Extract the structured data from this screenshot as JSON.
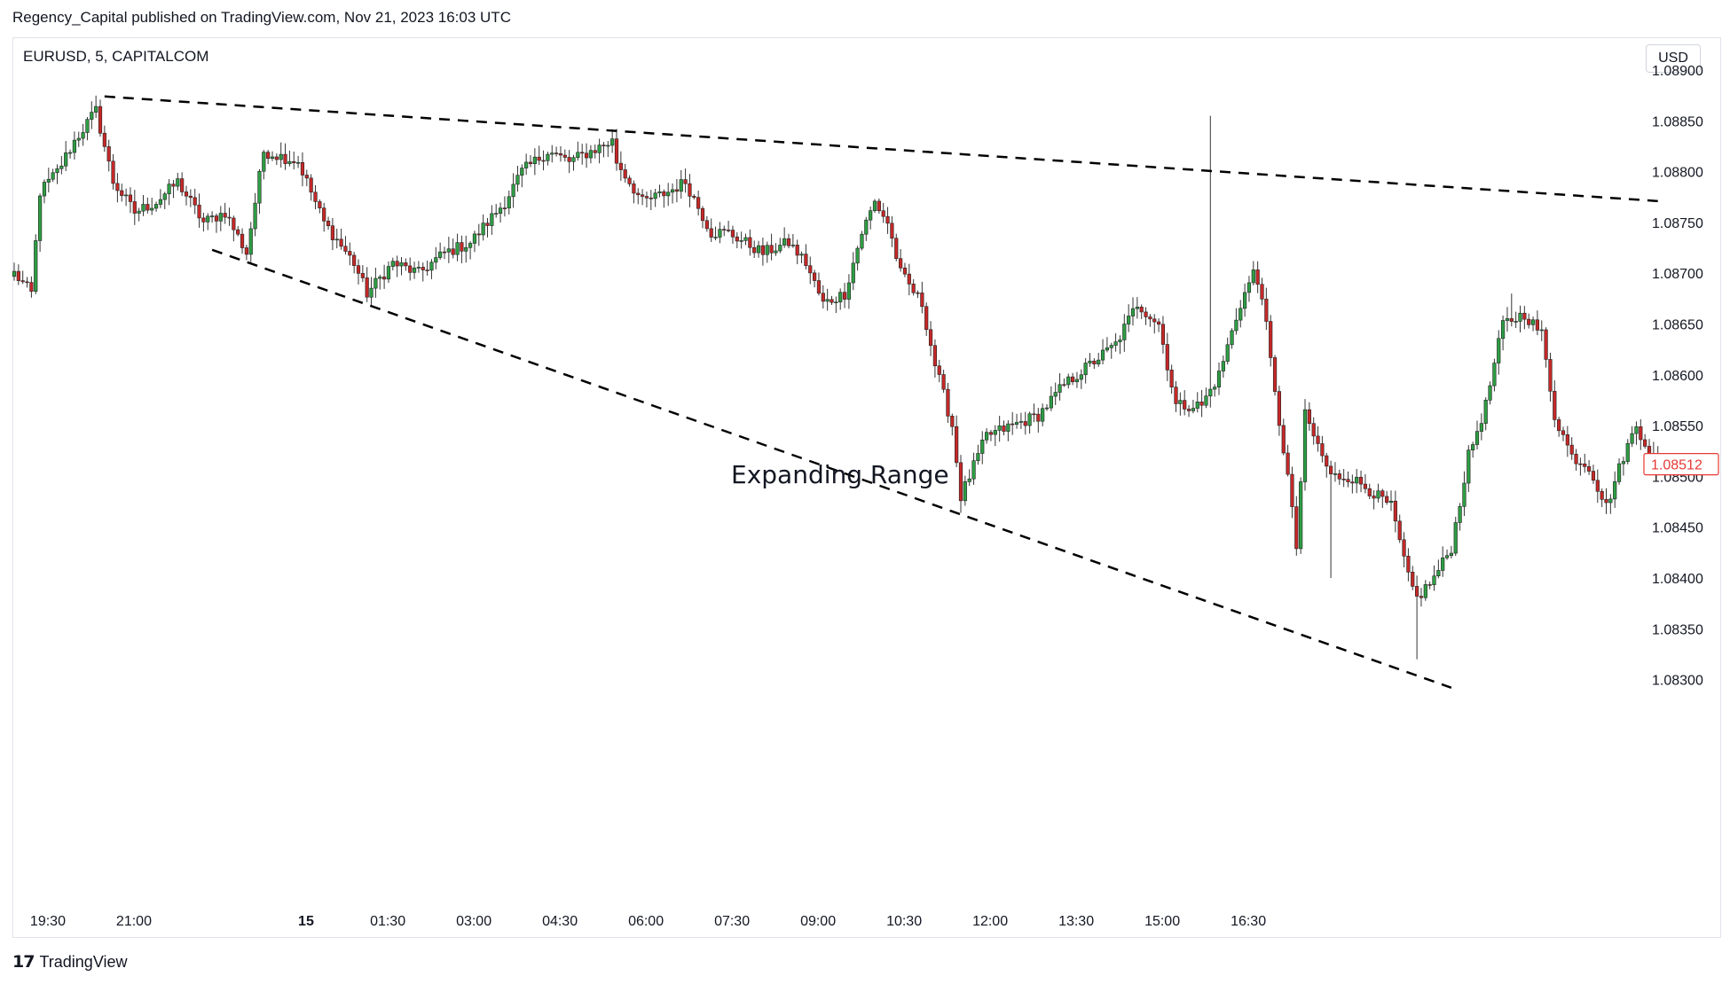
{
  "header": {
    "publish_line": "Regency_Capital published on TradingView.com, Nov 21, 2023 16:03 UTC"
  },
  "symbol_line": "EURUSD, 5, CAPITALCOM",
  "currency_button": "USD",
  "footer": {
    "brand": "TradingView",
    "logo_icon": "tradingview-logo-icon"
  },
  "colors": {
    "up": "#26a69a",
    "up_fill": "#2e9e44",
    "down": "#c62828",
    "price_tag": "#e53935",
    "grid_text": "#131722"
  },
  "chart_data": {
    "type": "candlestick",
    "title": "",
    "xlabel": "",
    "ylabel": "",
    "ylim": [
      1.0825,
      1.0893
    ],
    "y_ticks": [
      "1.08900",
      "1.08850",
      "1.08800",
      "1.08750",
      "1.08700",
      "1.08650",
      "1.08600",
      "1.08550",
      "1.08500",
      "1.08450",
      "1.08400",
      "1.08350",
      "1.08300"
    ],
    "x_ticks": [
      "19:30",
      "21:00",
      "15",
      "01:30",
      "03:00",
      "04:30",
      "06:00",
      "07:30",
      "09:00",
      "10:30",
      "12:00",
      "13:30",
      "15:00",
      "16:30"
    ],
    "bold_x_ticks": [
      "15"
    ],
    "last_price": "1.08512",
    "annotation": "Expanding Range",
    "grid": false,
    "close_path": [
      [
        0,
        1.087
      ],
      [
        4,
        1.0868
      ],
      [
        6,
        1.0878
      ],
      [
        10,
        1.088
      ],
      [
        14,
        1.0883
      ],
      [
        19,
        1.0886
      ],
      [
        23,
        1.0879
      ],
      [
        28,
        1.0876
      ],
      [
        33,
        1.0877
      ],
      [
        38,
        1.0879
      ],
      [
        44,
        1.0875
      ],
      [
        49,
        1.0876
      ],
      [
        54,
        1.0872
      ],
      [
        58,
        1.0882
      ],
      [
        66,
        1.0881
      ],
      [
        72,
        1.0875
      ],
      [
        79,
        1.0871
      ],
      [
        82,
        1.0868
      ],
      [
        88,
        1.0871
      ],
      [
        94,
        1.087
      ],
      [
        100,
        1.0872
      ],
      [
        106,
        1.0873
      ],
      [
        114,
        1.0877
      ],
      [
        118,
        1.088
      ],
      [
        124,
        1.0882
      ],
      [
        129,
        1.0881
      ],
      [
        134,
        1.0882
      ],
      [
        139,
        1.0883
      ],
      [
        140,
        1.0881
      ],
      [
        146,
        1.0877
      ],
      [
        152,
        1.0878
      ],
      [
        156,
        1.0879
      ],
      [
        162,
        1.0874
      ],
      [
        166,
        1.0874
      ],
      [
        174,
        1.0872
      ],
      [
        180,
        1.0873
      ],
      [
        184,
        1.0871
      ],
      [
        188,
        1.0867
      ],
      [
        193,
        1.0868
      ],
      [
        197,
        1.0874
      ],
      [
        200,
        1.0877
      ],
      [
        203,
        1.0875
      ],
      [
        206,
        1.087
      ],
      [
        211,
        1.0867
      ],
      [
        214,
        1.0861
      ],
      [
        218,
        1.0855
      ],
      [
        220,
        1.0848
      ],
      [
        226,
        1.0854
      ],
      [
        232,
        1.0855
      ],
      [
        238,
        1.0856
      ],
      [
        244,
        1.0859
      ],
      [
        250,
        1.0861
      ],
      [
        256,
        1.0863
      ],
      [
        261,
        1.0867
      ],
      [
        266,
        1.0865
      ],
      [
        270,
        1.0857
      ],
      [
        276,
        1.0857
      ],
      [
        280,
        1.086
      ],
      [
        285,
        1.0867
      ],
      [
        288,
        1.087
      ],
      [
        290,
        1.0868
      ],
      [
        293,
        1.0858
      ],
      [
        296,
        1.085
      ],
      [
        298,
        1.0843
      ],
      [
        300,
        1.0856
      ],
      [
        304,
        1.0852
      ],
      [
        306,
        1.085
      ],
      [
        310,
        1.085
      ],
      [
        314,
        1.0849
      ],
      [
        320,
        1.0847
      ],
      [
        324,
        1.084
      ],
      [
        326,
        1.0838
      ],
      [
        330,
        1.084
      ],
      [
        334,
        1.0843
      ],
      [
        338,
        1.0852
      ],
      [
        342,
        1.0857
      ],
      [
        346,
        1.0865
      ],
      [
        351,
        1.0866
      ],
      [
        355,
        1.0864
      ],
      [
        358,
        1.0856
      ],
      [
        362,
        1.0852
      ],
      [
        366,
        1.0851
      ],
      [
        370,
        1.0847
      ],
      [
        374,
        1.0852
      ],
      [
        377,
        1.0855
      ],
      [
        382,
        1.0851
      ]
    ],
    "spike_highs": [
      [
        278,
        1.08855
      ],
      [
        348,
        1.0868
      ]
    ],
    "spike_lows": [
      [
        306,
        1.084
      ],
      [
        326,
        1.0832
      ]
    ],
    "trendlines": [
      {
        "name": "upper",
        "from": [
          21,
          1.08874
        ],
        "to": [
          382,
          1.08771
        ]
      },
      {
        "name": "lower",
        "from": [
          46,
          1.08723
        ],
        "to": [
          334,
          1.08292
        ]
      }
    ]
  }
}
